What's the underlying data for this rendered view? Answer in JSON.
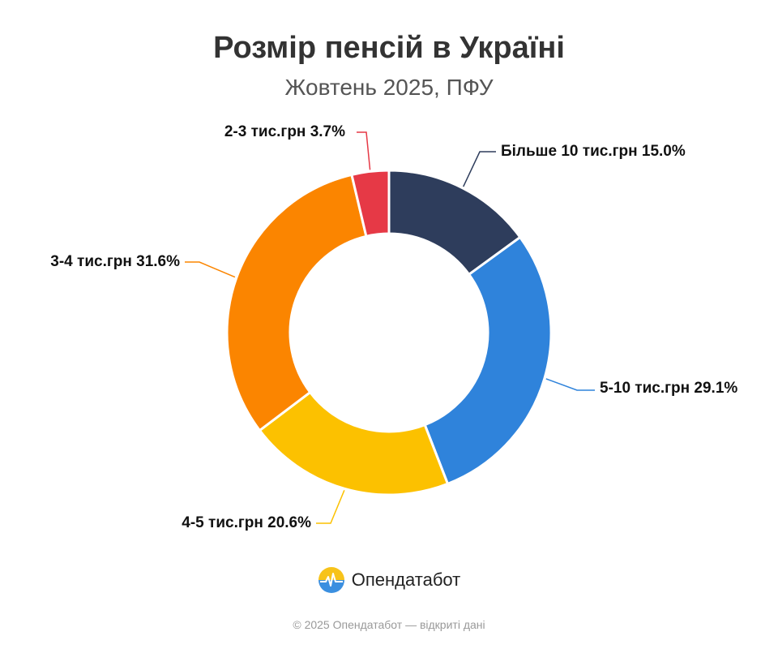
{
  "header": {
    "title": "Розмір пенсій в Україні",
    "subtitle": "Жовтень 2025, ПФУ"
  },
  "chart_data": {
    "type": "pie",
    "variant": "donut",
    "title": "Розмір пенсій в Україні",
    "subtitle": "Жовтень 2025, ПФУ",
    "unit": "%",
    "slices": [
      {
        "label": "Більше 10 тис.грн",
        "value": 15.0,
        "display": "Більше 10 тис.грн 15.0%",
        "color": "#2e3d5c"
      },
      {
        "label": "5-10 тис.грн",
        "value": 29.1,
        "display": "5-10 тис.грн 29.1%",
        "color": "#2f83db"
      },
      {
        "label": "4-5 тис.грн",
        "value": 20.6,
        "display": "4-5 тис.грн 20.6%",
        "color": "#fcc100"
      },
      {
        "label": "3-4 тис.грн",
        "value": 31.6,
        "display": "3-4 тис.грн 31.6%",
        "color": "#fb8500"
      },
      {
        "label": "2-3 тис.грн",
        "value": 3.7,
        "display": "2-3 тис.грн 3.7%",
        "color": "#e63946"
      }
    ]
  },
  "brand": {
    "name": "Опендатабот",
    "logo_icon": "opendatabot-logo-icon"
  },
  "footer": {
    "text": "© 2025 Опендатабот — відкриті дані"
  }
}
